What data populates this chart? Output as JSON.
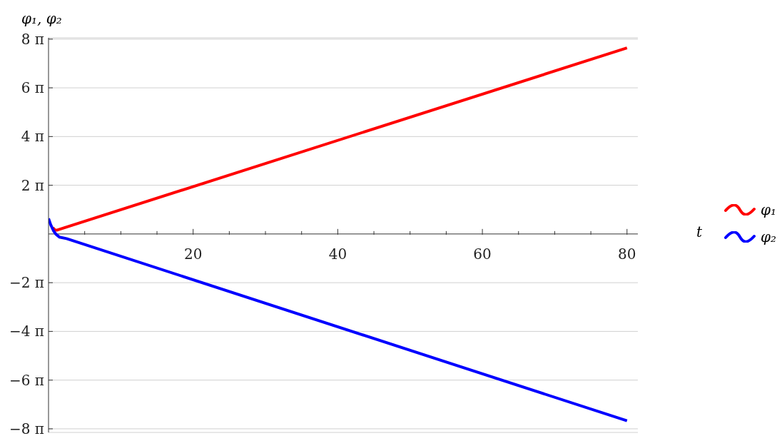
{
  "chart_data": {
    "type": "line",
    "xlabel": "t",
    "ylabel": "φ₁, φ₂",
    "xlim": [
      0,
      81.5
    ],
    "xticks": [
      {
        "value": 5,
        "label": null
      },
      {
        "value": 10,
        "label": null
      },
      {
        "value": 15,
        "label": null
      },
      20,
      {
        "value": 25,
        "label": null
      },
      {
        "value": 30,
        "label": null
      },
      {
        "value": 35,
        "label": null
      },
      40,
      {
        "value": 45,
        "label": null
      },
      {
        "value": 50,
        "label": null
      },
      {
        "value": 55,
        "label": null
      },
      60,
      {
        "value": 65,
        "label": null
      },
      {
        "value": 70,
        "label": null
      },
      {
        "value": 75,
        "label": null
      },
      80
    ],
    "ylim": [
      -25.6,
      25.3
    ],
    "yticks": [
      {
        "value": -25.133,
        "label": "−8 π"
      },
      {
        "value": -18.85,
        "label": "−6 π"
      },
      {
        "value": -12.566,
        "label": "−4 π"
      },
      {
        "value": -6.283,
        "label": "−2 π"
      },
      {
        "value": 6.283,
        "label": "2 π"
      },
      {
        "value": 12.566,
        "label": "4 π"
      },
      {
        "value": 18.85,
        "label": "6 π"
      },
      {
        "value": 25.133,
        "label": "8 π"
      }
    ],
    "grid": "y",
    "legend": "right",
    "line_style": "solid",
    "marker": "none",
    "series": [
      {
        "name": "φ₁",
        "color": "#ff0000",
        "x": [
          0.6,
          0.9,
          1.2,
          80
        ],
        "values": [
          0.8,
          0.5,
          0.5,
          24.0
        ]
      },
      {
        "name": "φ₂",
        "color": "#0000ff",
        "x": [
          0,
          0.3,
          0.7,
          1,
          1.5,
          2.5,
          80
        ],
        "values": [
          2.0,
          1.2,
          0.4,
          0.0,
          -0.4,
          -0.6,
          -24.1
        ]
      }
    ]
  }
}
